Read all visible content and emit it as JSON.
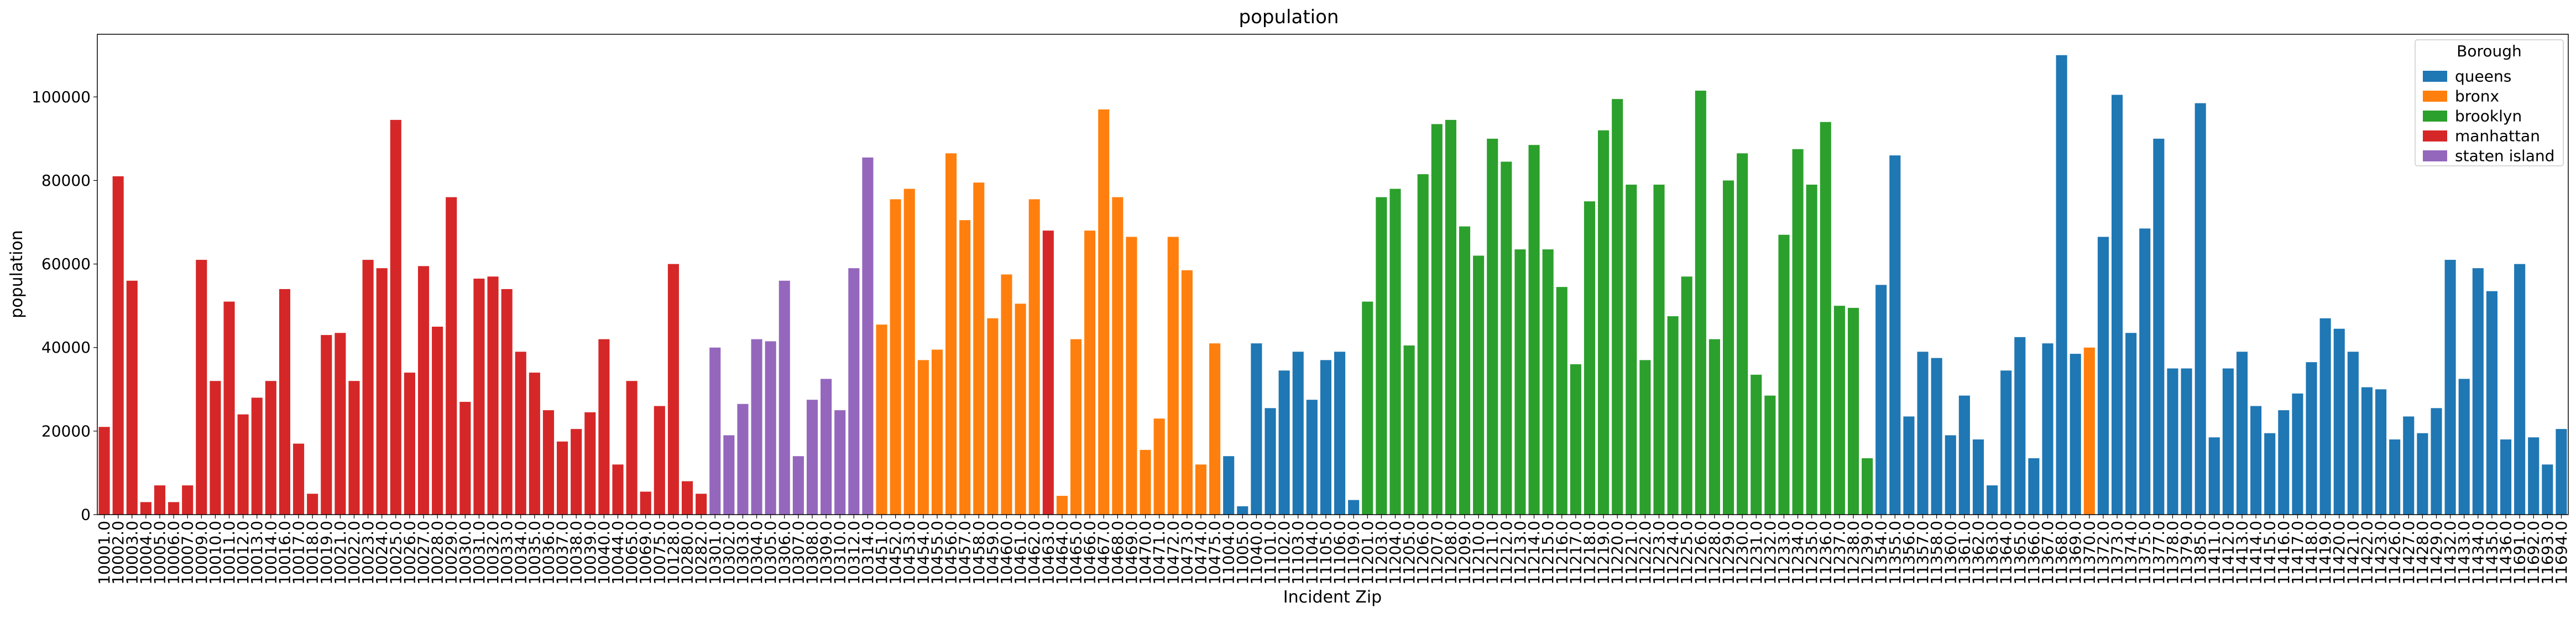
{
  "chart_data": {
    "type": "bar",
    "title": "population",
    "xlabel": "Incident Zip",
    "ylabel": "population",
    "ylim": [
      0,
      115000
    ],
    "yticks": [
      0,
      20000,
      40000,
      60000,
      80000,
      100000
    ],
    "grid": false,
    "legend": {
      "title": "Borough",
      "placement": "top-right",
      "entries": [
        {
          "name": "queens",
          "color": "#1f77b4"
        },
        {
          "name": "bronx",
          "color": "#ff7f0e"
        },
        {
          "name": "brooklyn",
          "color": "#2ca02c"
        },
        {
          "name": "manhattan",
          "color": "#d62728"
        },
        {
          "name": "staten island",
          "color": "#9467bd"
        }
      ]
    },
    "bars": [
      {
        "zip": "10001.0",
        "value": 21000,
        "borough": "manhattan"
      },
      {
        "zip": "10002.0",
        "value": 81000,
        "borough": "manhattan"
      },
      {
        "zip": "10003.0",
        "value": 56000,
        "borough": "manhattan"
      },
      {
        "zip": "10004.0",
        "value": 3000,
        "borough": "manhattan"
      },
      {
        "zip": "10005.0",
        "value": 7000,
        "borough": "manhattan"
      },
      {
        "zip": "10006.0",
        "value": 3000,
        "borough": "manhattan"
      },
      {
        "zip": "10007.0",
        "value": 7000,
        "borough": "manhattan"
      },
      {
        "zip": "10009.0",
        "value": 61000,
        "borough": "manhattan"
      },
      {
        "zip": "10010.0",
        "value": 32000,
        "borough": "manhattan"
      },
      {
        "zip": "10011.0",
        "value": 51000,
        "borough": "manhattan"
      },
      {
        "zip": "10012.0",
        "value": 24000,
        "borough": "manhattan"
      },
      {
        "zip": "10013.0",
        "value": 28000,
        "borough": "manhattan"
      },
      {
        "zip": "10014.0",
        "value": 32000,
        "borough": "manhattan"
      },
      {
        "zip": "10016.0",
        "value": 54000,
        "borough": "manhattan"
      },
      {
        "zip": "10017.0",
        "value": 17000,
        "borough": "manhattan"
      },
      {
        "zip": "10018.0",
        "value": 5000,
        "borough": "manhattan"
      },
      {
        "zip": "10019.0",
        "value": 43000,
        "borough": "manhattan"
      },
      {
        "zip": "10021.0",
        "value": 43500,
        "borough": "manhattan"
      },
      {
        "zip": "10022.0",
        "value": 32000,
        "borough": "manhattan"
      },
      {
        "zip": "10023.0",
        "value": 61000,
        "borough": "manhattan"
      },
      {
        "zip": "10024.0",
        "value": 59000,
        "borough": "manhattan"
      },
      {
        "zip": "10025.0",
        "value": 94500,
        "borough": "manhattan"
      },
      {
        "zip": "10026.0",
        "value": 34000,
        "borough": "manhattan"
      },
      {
        "zip": "10027.0",
        "value": 59500,
        "borough": "manhattan"
      },
      {
        "zip": "10028.0",
        "value": 45000,
        "borough": "manhattan"
      },
      {
        "zip": "10029.0",
        "value": 76000,
        "borough": "manhattan"
      },
      {
        "zip": "10030.0",
        "value": 27000,
        "borough": "manhattan"
      },
      {
        "zip": "10031.0",
        "value": 56500,
        "borough": "manhattan"
      },
      {
        "zip": "10032.0",
        "value": 57000,
        "borough": "manhattan"
      },
      {
        "zip": "10033.0",
        "value": 54000,
        "borough": "manhattan"
      },
      {
        "zip": "10034.0",
        "value": 39000,
        "borough": "manhattan"
      },
      {
        "zip": "10035.0",
        "value": 34000,
        "borough": "manhattan"
      },
      {
        "zip": "10036.0",
        "value": 25000,
        "borough": "manhattan"
      },
      {
        "zip": "10037.0",
        "value": 17500,
        "borough": "manhattan"
      },
      {
        "zip": "10038.0",
        "value": 20500,
        "borough": "manhattan"
      },
      {
        "zip": "10039.0",
        "value": 24500,
        "borough": "manhattan"
      },
      {
        "zip": "10040.0",
        "value": 42000,
        "borough": "manhattan"
      },
      {
        "zip": "10044.0",
        "value": 12000,
        "borough": "manhattan"
      },
      {
        "zip": "10065.0",
        "value": 32000,
        "borough": "manhattan"
      },
      {
        "zip": "10069.0",
        "value": 5500,
        "borough": "manhattan"
      },
      {
        "zip": "10075.0",
        "value": 26000,
        "borough": "manhattan"
      },
      {
        "zip": "10128.0",
        "value": 60000,
        "borough": "manhattan"
      },
      {
        "zip": "10280.0",
        "value": 8000,
        "borough": "manhattan"
      },
      {
        "zip": "10282.0",
        "value": 5000,
        "borough": "manhattan"
      },
      {
        "zip": "10301.0",
        "value": 40000,
        "borough": "staten island"
      },
      {
        "zip": "10302.0",
        "value": 19000,
        "borough": "staten island"
      },
      {
        "zip": "10303.0",
        "value": 26500,
        "borough": "staten island"
      },
      {
        "zip": "10304.0",
        "value": 42000,
        "borough": "staten island"
      },
      {
        "zip": "10305.0",
        "value": 41500,
        "borough": "staten island"
      },
      {
        "zip": "10306.0",
        "value": 56000,
        "borough": "staten island"
      },
      {
        "zip": "10307.0",
        "value": 14000,
        "borough": "staten island"
      },
      {
        "zip": "10308.0",
        "value": 27500,
        "borough": "staten island"
      },
      {
        "zip": "10309.0",
        "value": 32500,
        "borough": "staten island"
      },
      {
        "zip": "10310.0",
        "value": 25000,
        "borough": "staten island"
      },
      {
        "zip": "10312.0",
        "value": 59000,
        "borough": "staten island"
      },
      {
        "zip": "10314.0",
        "value": 85500,
        "borough": "staten island"
      },
      {
        "zip": "10451.0",
        "value": 45500,
        "borough": "bronx"
      },
      {
        "zip": "10452.0",
        "value": 75500,
        "borough": "bronx"
      },
      {
        "zip": "10453.0",
        "value": 78000,
        "borough": "bronx"
      },
      {
        "zip": "10454.0",
        "value": 37000,
        "borough": "bronx"
      },
      {
        "zip": "10455.0",
        "value": 39500,
        "borough": "bronx"
      },
      {
        "zip": "10456.0",
        "value": 86500,
        "borough": "bronx"
      },
      {
        "zip": "10457.0",
        "value": 70500,
        "borough": "bronx"
      },
      {
        "zip": "10458.0",
        "value": 79500,
        "borough": "bronx"
      },
      {
        "zip": "10459.0",
        "value": 47000,
        "borough": "bronx"
      },
      {
        "zip": "10460.0",
        "value": 57500,
        "borough": "bronx"
      },
      {
        "zip": "10461.0",
        "value": 50500,
        "borough": "bronx"
      },
      {
        "zip": "10462.0",
        "value": 75500,
        "borough": "bronx"
      },
      {
        "zip": "10463.0",
        "value": 68000,
        "borough": "manhattan"
      },
      {
        "zip": "10464.0",
        "value": 4500,
        "borough": "bronx"
      },
      {
        "zip": "10465.0",
        "value": 42000,
        "borough": "bronx"
      },
      {
        "zip": "10466.0",
        "value": 68000,
        "borough": "bronx"
      },
      {
        "zip": "10467.0",
        "value": 97000,
        "borough": "bronx"
      },
      {
        "zip": "10468.0",
        "value": 76000,
        "borough": "bronx"
      },
      {
        "zip": "10469.0",
        "value": 66500,
        "borough": "bronx"
      },
      {
        "zip": "10470.0",
        "value": 15500,
        "borough": "bronx"
      },
      {
        "zip": "10471.0",
        "value": 23000,
        "borough": "bronx"
      },
      {
        "zip": "10472.0",
        "value": 66500,
        "borough": "bronx"
      },
      {
        "zip": "10473.0",
        "value": 58500,
        "borough": "bronx"
      },
      {
        "zip": "10474.0",
        "value": 12000,
        "borough": "bronx"
      },
      {
        "zip": "10475.0",
        "value": 41000,
        "borough": "bronx"
      },
      {
        "zip": "11004.0",
        "value": 14000,
        "borough": "queens"
      },
      {
        "zip": "11005.0",
        "value": 2000,
        "borough": "queens"
      },
      {
        "zip": "11040.0",
        "value": 41000,
        "borough": "queens"
      },
      {
        "zip": "11101.0",
        "value": 25500,
        "borough": "queens"
      },
      {
        "zip": "11102.0",
        "value": 34500,
        "borough": "queens"
      },
      {
        "zip": "11103.0",
        "value": 39000,
        "borough": "queens"
      },
      {
        "zip": "11104.0",
        "value": 27500,
        "borough": "queens"
      },
      {
        "zip": "11105.0",
        "value": 37000,
        "borough": "queens"
      },
      {
        "zip": "11106.0",
        "value": 39000,
        "borough": "queens"
      },
      {
        "zip": "11109.0",
        "value": 3500,
        "borough": "queens"
      },
      {
        "zip": "11201.0",
        "value": 51000,
        "borough": "brooklyn"
      },
      {
        "zip": "11203.0",
        "value": 76000,
        "borough": "brooklyn"
      },
      {
        "zip": "11204.0",
        "value": 78000,
        "borough": "brooklyn"
      },
      {
        "zip": "11205.0",
        "value": 40500,
        "borough": "brooklyn"
      },
      {
        "zip": "11206.0",
        "value": 81500,
        "borough": "brooklyn"
      },
      {
        "zip": "11207.0",
        "value": 93500,
        "borough": "brooklyn"
      },
      {
        "zip": "11208.0",
        "value": 94500,
        "borough": "brooklyn"
      },
      {
        "zip": "11209.0",
        "value": 69000,
        "borough": "brooklyn"
      },
      {
        "zip": "11210.0",
        "value": 62000,
        "borough": "brooklyn"
      },
      {
        "zip": "11211.0",
        "value": 90000,
        "borough": "brooklyn"
      },
      {
        "zip": "11212.0",
        "value": 84500,
        "borough": "brooklyn"
      },
      {
        "zip": "11213.0",
        "value": 63500,
        "borough": "brooklyn"
      },
      {
        "zip": "11214.0",
        "value": 88500,
        "borough": "brooklyn"
      },
      {
        "zip": "11215.0",
        "value": 63500,
        "borough": "brooklyn"
      },
      {
        "zip": "11216.0",
        "value": 54500,
        "borough": "brooklyn"
      },
      {
        "zip": "11217.0",
        "value": 36000,
        "borough": "brooklyn"
      },
      {
        "zip": "11218.0",
        "value": 75000,
        "borough": "brooklyn"
      },
      {
        "zip": "11219.0",
        "value": 92000,
        "borough": "brooklyn"
      },
      {
        "zip": "11220.0",
        "value": 99500,
        "borough": "brooklyn"
      },
      {
        "zip": "11221.0",
        "value": 79000,
        "borough": "brooklyn"
      },
      {
        "zip": "11222.0",
        "value": 37000,
        "borough": "brooklyn"
      },
      {
        "zip": "11223.0",
        "value": 79000,
        "borough": "brooklyn"
      },
      {
        "zip": "11224.0",
        "value": 47500,
        "borough": "brooklyn"
      },
      {
        "zip": "11225.0",
        "value": 57000,
        "borough": "brooklyn"
      },
      {
        "zip": "11226.0",
        "value": 101500,
        "borough": "brooklyn"
      },
      {
        "zip": "11228.0",
        "value": 42000,
        "borough": "brooklyn"
      },
      {
        "zip": "11229.0",
        "value": 80000,
        "borough": "brooklyn"
      },
      {
        "zip": "11230.0",
        "value": 86500,
        "borough": "brooklyn"
      },
      {
        "zip": "11231.0",
        "value": 33500,
        "borough": "brooklyn"
      },
      {
        "zip": "11232.0",
        "value": 28500,
        "borough": "brooklyn"
      },
      {
        "zip": "11233.0",
        "value": 67000,
        "borough": "brooklyn"
      },
      {
        "zip": "11234.0",
        "value": 87500,
        "borough": "brooklyn"
      },
      {
        "zip": "11235.0",
        "value": 79000,
        "borough": "brooklyn"
      },
      {
        "zip": "11236.0",
        "value": 94000,
        "borough": "brooklyn"
      },
      {
        "zip": "11237.0",
        "value": 50000,
        "borough": "brooklyn"
      },
      {
        "zip": "11238.0",
        "value": 49500,
        "borough": "brooklyn"
      },
      {
        "zip": "11239.0",
        "value": 13500,
        "borough": "brooklyn"
      },
      {
        "zip": "11354.0",
        "value": 55000,
        "borough": "queens"
      },
      {
        "zip": "11355.0",
        "value": 86000,
        "borough": "queens"
      },
      {
        "zip": "11356.0",
        "value": 23500,
        "borough": "queens"
      },
      {
        "zip": "11357.0",
        "value": 39000,
        "borough": "queens"
      },
      {
        "zip": "11358.0",
        "value": 37500,
        "borough": "queens"
      },
      {
        "zip": "11360.0",
        "value": 19000,
        "borough": "queens"
      },
      {
        "zip": "11361.0",
        "value": 28500,
        "borough": "queens"
      },
      {
        "zip": "11362.0",
        "value": 18000,
        "borough": "queens"
      },
      {
        "zip": "11363.0",
        "value": 7000,
        "borough": "queens"
      },
      {
        "zip": "11364.0",
        "value": 34500,
        "borough": "queens"
      },
      {
        "zip": "11365.0",
        "value": 42500,
        "borough": "queens"
      },
      {
        "zip": "11366.0",
        "value": 13500,
        "borough": "queens"
      },
      {
        "zip": "11367.0",
        "value": 41000,
        "borough": "queens"
      },
      {
        "zip": "11368.0",
        "value": 110000,
        "borough": "queens"
      },
      {
        "zip": "11369.0",
        "value": 38500,
        "borough": "queens"
      },
      {
        "zip": "11370.0",
        "value": 40000,
        "borough": "bronx"
      },
      {
        "zip": "11372.0",
        "value": 66500,
        "borough": "queens"
      },
      {
        "zip": "11373.0",
        "value": 100500,
        "borough": "queens"
      },
      {
        "zip": "11374.0",
        "value": 43500,
        "borough": "queens"
      },
      {
        "zip": "11375.0",
        "value": 68500,
        "borough": "queens"
      },
      {
        "zip": "11377.0",
        "value": 90000,
        "borough": "queens"
      },
      {
        "zip": "11378.0",
        "value": 35000,
        "borough": "queens"
      },
      {
        "zip": "11379.0",
        "value": 35000,
        "borough": "queens"
      },
      {
        "zip": "11385.0",
        "value": 98500,
        "borough": "queens"
      },
      {
        "zip": "11411.0",
        "value": 18500,
        "borough": "queens"
      },
      {
        "zip": "11412.0",
        "value": 35000,
        "borough": "queens"
      },
      {
        "zip": "11413.0",
        "value": 39000,
        "borough": "queens"
      },
      {
        "zip": "11414.0",
        "value": 26000,
        "borough": "queens"
      },
      {
        "zip": "11415.0",
        "value": 19500,
        "borough": "queens"
      },
      {
        "zip": "11416.0",
        "value": 25000,
        "borough": "queens"
      },
      {
        "zip": "11417.0",
        "value": 29000,
        "borough": "queens"
      },
      {
        "zip": "11418.0",
        "value": 36500,
        "borough": "queens"
      },
      {
        "zip": "11419.0",
        "value": 47000,
        "borough": "queens"
      },
      {
        "zip": "11420.0",
        "value": 44500,
        "borough": "queens"
      },
      {
        "zip": "11421.0",
        "value": 39000,
        "borough": "queens"
      },
      {
        "zip": "11422.0",
        "value": 30500,
        "borough": "queens"
      },
      {
        "zip": "11423.0",
        "value": 30000,
        "borough": "queens"
      },
      {
        "zip": "11426.0",
        "value": 18000,
        "borough": "queens"
      },
      {
        "zip": "11427.0",
        "value": 23500,
        "borough": "queens"
      },
      {
        "zip": "11428.0",
        "value": 19500,
        "borough": "queens"
      },
      {
        "zip": "11429.0",
        "value": 25500,
        "borough": "queens"
      },
      {
        "zip": "11432.0",
        "value": 61000,
        "borough": "queens"
      },
      {
        "zip": "11433.0",
        "value": 32500,
        "borough": "queens"
      },
      {
        "zip": "11434.0",
        "value": 59000,
        "borough": "queens"
      },
      {
        "zip": "11435.0",
        "value": 53500,
        "borough": "queens"
      },
      {
        "zip": "11436.0",
        "value": 18000,
        "borough": "queens"
      },
      {
        "zip": "11691.0",
        "value": 60000,
        "borough": "queens"
      },
      {
        "zip": "11692.0",
        "value": 18500,
        "borough": "queens"
      },
      {
        "zip": "11693.0",
        "value": 12000,
        "borough": "queens"
      },
      {
        "zip": "11694.0",
        "value": 20500,
        "borough": "queens"
      }
    ]
  }
}
